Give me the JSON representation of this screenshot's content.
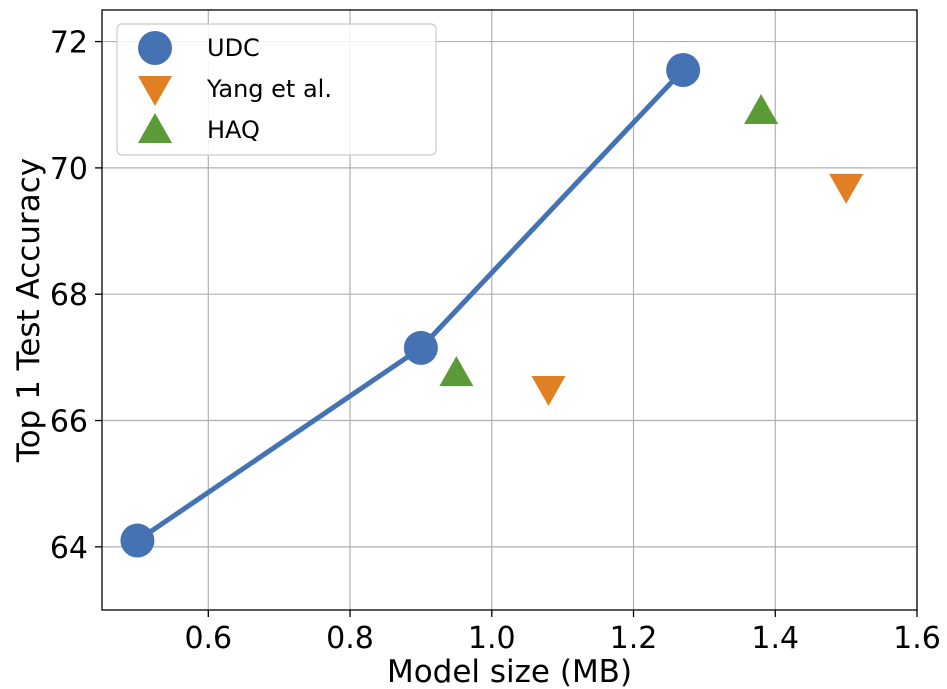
{
  "chart_data": {
    "type": "scatter",
    "title": "",
    "xlabel": "Model size (MB)",
    "ylabel": "Top 1 Test Accuracy",
    "xlim": [
      0.45,
      1.6
    ],
    "ylim": [
      63.0,
      72.5
    ],
    "xticks": [
      0.6,
      0.8,
      1.0,
      1.2,
      1.4,
      1.6
    ],
    "xtick_labels": [
      "0.6",
      "0.8",
      "1.0",
      "1.2",
      "1.4",
      "1.6"
    ],
    "yticks": [
      64,
      66,
      68,
      70,
      72
    ],
    "ytick_labels": [
      "64",
      "66",
      "68",
      "70",
      "72"
    ],
    "grid": true,
    "legend_position": "top-left",
    "series": [
      {
        "name": "UDC",
        "marker": "circle",
        "line": true,
        "color": "#4572b2",
        "points": [
          [
            0.5,
            64.1
          ],
          [
            0.9,
            67.15
          ],
          [
            1.27,
            71.55
          ]
        ]
      },
      {
        "name": "Yang et al.",
        "marker": "triangle-down",
        "line": false,
        "color": "#e07f24",
        "points": [
          [
            1.08,
            66.5
          ],
          [
            1.5,
            69.7
          ]
        ]
      },
      {
        "name": "HAQ",
        "marker": "triangle-up",
        "line": false,
        "color": "#5a9b38",
        "points": [
          [
            0.95,
            66.75
          ],
          [
            1.38,
            70.9
          ]
        ]
      }
    ]
  }
}
